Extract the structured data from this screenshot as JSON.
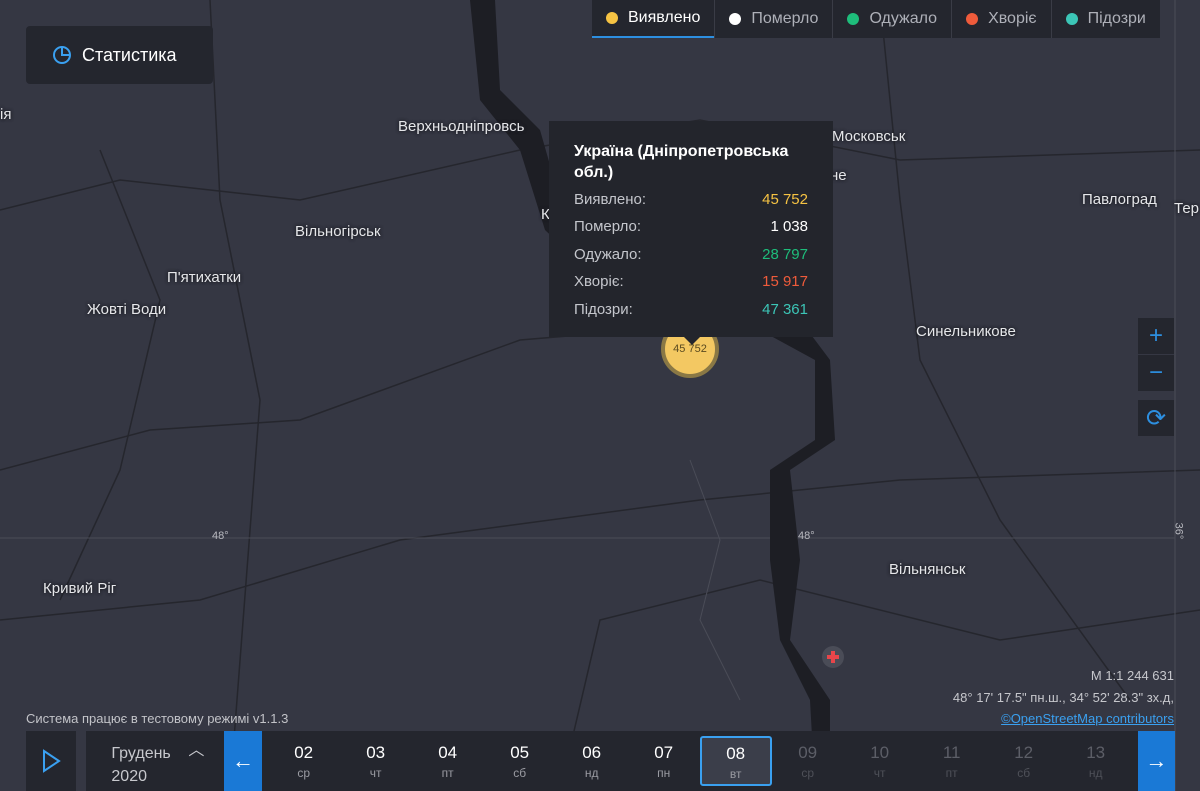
{
  "stats_button": {
    "label": "Статистика"
  },
  "legend": [
    {
      "label": "Виявлено",
      "color": "#f6c343"
    },
    {
      "label": "Померло",
      "color": "#ffffff"
    },
    {
      "label": "Одужало",
      "color": "#1ebd7b"
    },
    {
      "label": "Хворіє",
      "color": "#ef5b3b"
    },
    {
      "label": "Підозри",
      "color": "#3cc6b7"
    }
  ],
  "map_labels": {
    "l0": "ія",
    "l1": "Верхньодніпровсь",
    "l2": "Московськ",
    "l3": "не",
    "l4": "К",
    "l5": "Павлоград",
    "l6": "Тер",
    "l7": "Вільногірськ",
    "l8": "П'ятихатки",
    "l9": "Жовті Води",
    "l10": "Синельникове",
    "l11": "Кривий Ріг",
    "l12": "Вільнянськ",
    "g1": "48°",
    "g2": "48°",
    "g3": "36°"
  },
  "tooltip": {
    "title": "Україна (Дніпропетровська обл.)",
    "rows": [
      {
        "label": "Виявлено:",
        "value": "45 752",
        "color": "#f6c343"
      },
      {
        "label": "Померло:",
        "value": "1 038",
        "color": "#ffffff"
      },
      {
        "label": "Одужало:",
        "value": "28 797",
        "color": "#1ebd7b"
      },
      {
        "label": "Хворіє:",
        "value": "15 917",
        "color": "#ef5b3b"
      },
      {
        "label": "Підозри:",
        "value": "47 361",
        "color": "#3cc6b7"
      }
    ]
  },
  "cluster": {
    "value": "45 752"
  },
  "controls": {
    "zoom_in": "+",
    "zoom_out": "−",
    "refresh": "⟳"
  },
  "scale": "M 1:1 244 631",
  "coords": "48° 17' 17.5\" пн.ш., 34° 52' 28.3\" зх.д,",
  "attribution": "©OpenStreetMap contributors",
  "test_mode": "Система працює в тестовому режимі v1.1.3",
  "timeline": {
    "month": "Грудень",
    "year": "2020",
    "days": [
      {
        "d": "02",
        "w": "ср"
      },
      {
        "d": "03",
        "w": "чт"
      },
      {
        "d": "04",
        "w": "пт"
      },
      {
        "d": "05",
        "w": "сб"
      },
      {
        "d": "06",
        "w": "нд"
      },
      {
        "d": "07",
        "w": "пн"
      },
      {
        "d": "08",
        "w": "вт",
        "selected": true
      },
      {
        "d": "09",
        "w": "ср",
        "future": true
      },
      {
        "d": "10",
        "w": "чт",
        "future": true
      },
      {
        "d": "11",
        "w": "пт",
        "future": true
      },
      {
        "d": "12",
        "w": "сб",
        "future": true
      },
      {
        "d": "13",
        "w": "нд",
        "future": true
      }
    ]
  }
}
